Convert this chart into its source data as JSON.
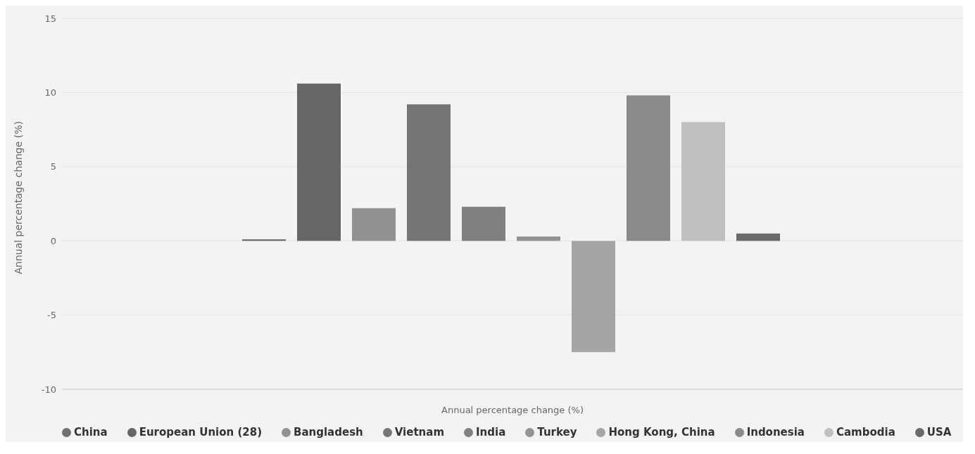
{
  "chart_data": {
    "type": "bar",
    "xlabel": "Annual percentage change (%)",
    "ylabel": "Annual percentage change (%)",
    "categories": [
      null
    ],
    "series": [
      {
        "name": "China",
        "color": "#707070",
        "values": [
          0.1
        ]
      },
      {
        "name": "European Union (28)",
        "color": "#666666",
        "values": [
          10.6
        ]
      },
      {
        "name": "Bangladesh",
        "color": "#929292",
        "values": [
          2.2
        ]
      },
      {
        "name": "Vietnam",
        "color": "#757575",
        "values": [
          9.2
        ]
      },
      {
        "name": "India",
        "color": "#808080",
        "values": [
          2.3
        ]
      },
      {
        "name": "Turkey",
        "color": "#939393",
        "values": [
          0.3
        ]
      },
      {
        "name": "Hong Kong, China",
        "color": "#a5a5a5",
        "values": [
          -7.5
        ]
      },
      {
        "name": "Indonesia",
        "color": "#8a8a8a",
        "values": [
          9.8
        ]
      },
      {
        "name": "Cambodia",
        "color": "#bfbfbf",
        "values": [
          8.0
        ]
      },
      {
        "name": "USA",
        "color": "#6a6a6a",
        "values": [
          0.5
        ]
      }
    ],
    "ylim": [
      -10,
      15
    ],
    "yticks": [
      -10,
      -5,
      0,
      5,
      10,
      15
    ],
    "grid": "y",
    "legend": "bottom"
  }
}
